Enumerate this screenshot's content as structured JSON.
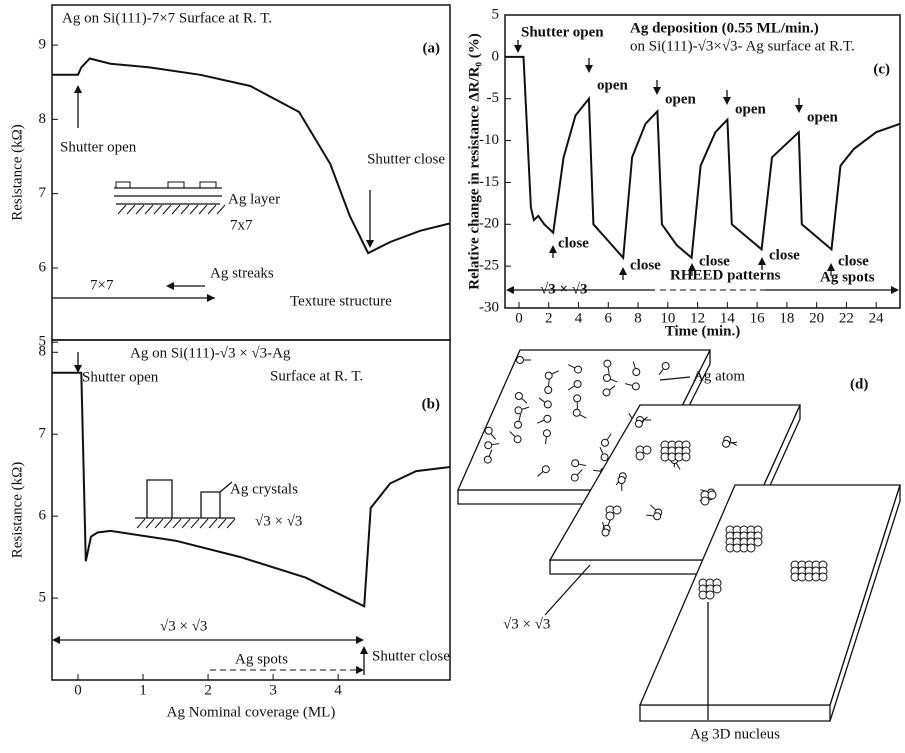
{
  "chart_data": [
    {
      "type": "line",
      "title": "Ag on Si(111)-7×7 Surface at R. T.",
      "panel_label": "(a)",
      "y_label": "Resistance (kΩ)",
      "color": "#111111",
      "x": [
        -0.4,
        0.0,
        0.05,
        0.18,
        0.5,
        1.1,
        1.88,
        2.65,
        3.4,
        3.88,
        4.18,
        4.46,
        4.8,
        5.26,
        5.72
      ],
      "values": [
        8.6,
        8.6,
        8.7,
        8.82,
        8.75,
        8.7,
        8.6,
        8.45,
        8.1,
        7.4,
        6.7,
        6.2,
        6.35,
        6.5,
        6.6
      ],
      "xlim": [
        -0.4,
        5.72
      ],
      "ylim": [
        5.03,
        9.54
      ],
      "yticks": [
        5,
        6,
        7,
        8,
        9
      ],
      "annotations": [
        "Shutter open",
        "Shutter close",
        "Ag layer",
        "7x7",
        "7×7",
        "Ag streaks",
        "Texture structure"
      ]
    },
    {
      "type": "line",
      "title": "Ag on Si(111)-√3 × √3-Ag",
      "subtitle": "Surface at R. T.",
      "panel_label": "(b)",
      "y_label": "Resistance (kΩ)",
      "x_label": "Ag Nominal coverage (ML)",
      "color": "#111111",
      "x": [
        -0.4,
        0.05,
        0.12,
        0.2,
        0.3,
        0.5,
        1.5,
        2.5,
        3.5,
        4.4,
        4.5,
        4.8,
        5.2,
        5.72
      ],
      "values": [
        7.75,
        7.75,
        5.45,
        5.75,
        5.8,
        5.82,
        5.7,
        5.5,
        5.25,
        4.9,
        6.1,
        6.4,
        6.55,
        6.6
      ],
      "xlim": [
        -0.4,
        5.72
      ],
      "ylim": [
        4.0,
        8.15
      ],
      "xticks": [
        0,
        1,
        2,
        3,
        4
      ],
      "yticks": [
        5,
        6,
        7,
        8
      ],
      "annotations": [
        "Shutter open",
        "Ag crystals",
        "√3 × √3",
        "√3 × √3",
        "Ag spots",
        "Shutter close"
      ]
    },
    {
      "type": "line",
      "title": "Ag deposition (0.55 ML/min.)",
      "subtitle": "on Si(111)-√3×√3- Ag surface at R.T.",
      "panel_label": "(c)",
      "y_label": "Relative change in resistance ΔR/R₀ (%)",
      "x_label": "Time (min.)",
      "color": "#111111",
      "x": [
        -0.94,
        0.3,
        0.8,
        1.0,
        1.3,
        1.7,
        2.3,
        3.0,
        3.8,
        4.7,
        5.0,
        6.0,
        7.0,
        7.6,
        8.5,
        9.3,
        9.6,
        10.6,
        11.6,
        12.2,
        13.2,
        14.0,
        14.3,
        16.3,
        17.0,
        18.8,
        19.0,
        21.0,
        21.6,
        22.5,
        24.0,
        25.6
      ],
      "values": [
        0,
        0,
        -18,
        -19.5,
        -19,
        -20,
        -21,
        -12,
        -7,
        -5,
        -20,
        -22,
        -24,
        -12,
        -8,
        -6.5,
        -20,
        -22.5,
        -24,
        -13,
        -9,
        -7.5,
        -20,
        -23,
        -12,
        -9,
        -20,
        -23,
        -13,
        -11,
        -9,
        -8
      ],
      "xlim": [
        -0.94,
        25.6
      ],
      "ylim": [
        -30,
        5
      ],
      "xticks": [
        0,
        2,
        4,
        6,
        8,
        10,
        12,
        14,
        16,
        18,
        20,
        22,
        24
      ],
      "yticks": [
        5,
        0,
        -5,
        -10,
        -15,
        -20,
        -25,
        -30
      ],
      "annotations": [
        "Shutter open",
        "open",
        "open",
        "open",
        "open",
        "close",
        "close",
        "close",
        "close",
        "close",
        "√3 × √3",
        "RHEED patterns",
        "Ag spots"
      ]
    }
  ],
  "diagram": {
    "panel_label": "(d)",
    "labels": [
      "Ag atom",
      "√3 × √3",
      "Ag 3D nucleus"
    ]
  }
}
